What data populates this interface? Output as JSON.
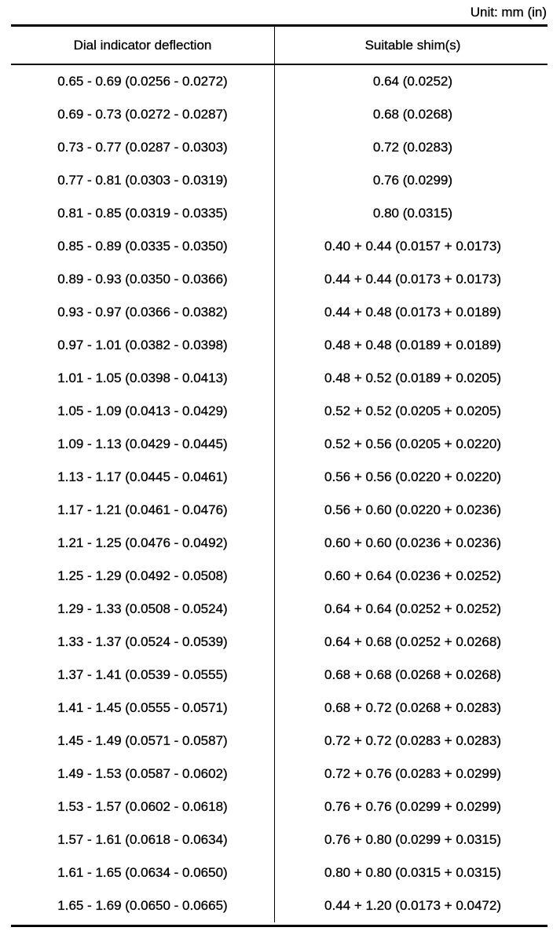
{
  "unit_label": "Unit: mm (in)",
  "headers": [
    "Dial indicator deflection",
    "Suitable shim(s)"
  ],
  "rows": [
    [
      "0.65 - 0.69 (0.0256 - 0.0272)",
      "0.64 (0.0252)"
    ],
    [
      "0.69 - 0.73 (0.0272 - 0.0287)",
      "0.68 (0.0268)"
    ],
    [
      "0.73 - 0.77 (0.0287 - 0.0303)",
      "0.72 (0.0283)"
    ],
    [
      "0.77 - 0.81 (0.0303 - 0.0319)",
      "0.76 (0.0299)"
    ],
    [
      "0.81 - 0.85 (0.0319 - 0.0335)",
      "0.80 (0.0315)"
    ],
    [
      "0.85 - 0.89 (0.0335 - 0.0350)",
      "0.40 + 0.44 (0.0157 + 0.0173)"
    ],
    [
      "0.89 - 0.93 (0.0350 - 0.0366)",
      "0.44 + 0.44 (0.0173 + 0.0173)"
    ],
    [
      "0.93 - 0.97 (0.0366 - 0.0382)",
      "0.44 + 0.48 (0.0173 + 0.0189)"
    ],
    [
      "0.97 - 1.01 (0.0382 - 0.0398)",
      "0.48 + 0.48 (0.0189 + 0.0189)"
    ],
    [
      "1.01 - 1.05 (0.0398 - 0.0413)",
      "0.48 + 0.52 (0.0189 + 0.0205)"
    ],
    [
      "1.05 - 1.09 (0.0413 - 0.0429)",
      "0.52 + 0.52 (0.0205 + 0.0205)"
    ],
    [
      "1.09 - 1.13 (0.0429 - 0.0445)",
      "0.52 + 0.56 (0.0205 + 0.0220)"
    ],
    [
      "1.13 - 1.17 (0.0445 - 0.0461)",
      "0.56 + 0.56 (0.0220 + 0.0220)"
    ],
    [
      "1.17 - 1.21 (0.0461 - 0.0476)",
      "0.56 + 0.60 (0.0220 + 0.0236)"
    ],
    [
      "1.21 - 1.25 (0.0476 - 0.0492)",
      "0.60 + 0.60 (0.0236 + 0.0236)"
    ],
    [
      "1.25 - 1.29 (0.0492 - 0.0508)",
      "0.60 + 0.64 (0.0236 + 0.0252)"
    ],
    [
      "1.29 - 1.33 (0.0508 - 0.0524)",
      "0.64 + 0.64 (0.0252 + 0.0252)"
    ],
    [
      "1.33 - 1.37 (0.0524 - 0.0539)",
      "0.64 + 0.68 (0.0252 + 0.0268)"
    ],
    [
      "1.37 - 1.41 (0.0539 - 0.0555)",
      "0.68 + 0.68 (0.0268 + 0.0268)"
    ],
    [
      "1.41 - 1.45 (0.0555 - 0.0571)",
      "0.68 + 0.72 (0.0268 + 0.0283)"
    ],
    [
      "1.45 - 1.49 (0.0571 - 0.0587)",
      "0.72 + 0.72 (0.0283 + 0.0283)"
    ],
    [
      "1.49 - 1.53 (0.0587 - 0.0602)",
      "0.72 + 0.76 (0.0283 + 0.0299)"
    ],
    [
      "1.53 - 1.57 (0.0602 - 0.0618)",
      "0.76 + 0.76 (0.0299 + 0.0299)"
    ],
    [
      "1.57 - 1.61 (0.0618 - 0.0634)",
      "0.76 + 0.80 (0.0299 + 0.0315)"
    ],
    [
      "1.61 - 1.65 (0.0634 - 0.0650)",
      "0.80 + 0.80 (0.0315 + 0.0315)"
    ],
    [
      "1.65 - 1.69 (0.0650 - 0.0665)",
      "0.44 + 1.20 (0.0173 + 0.0472)"
    ]
  ]
}
